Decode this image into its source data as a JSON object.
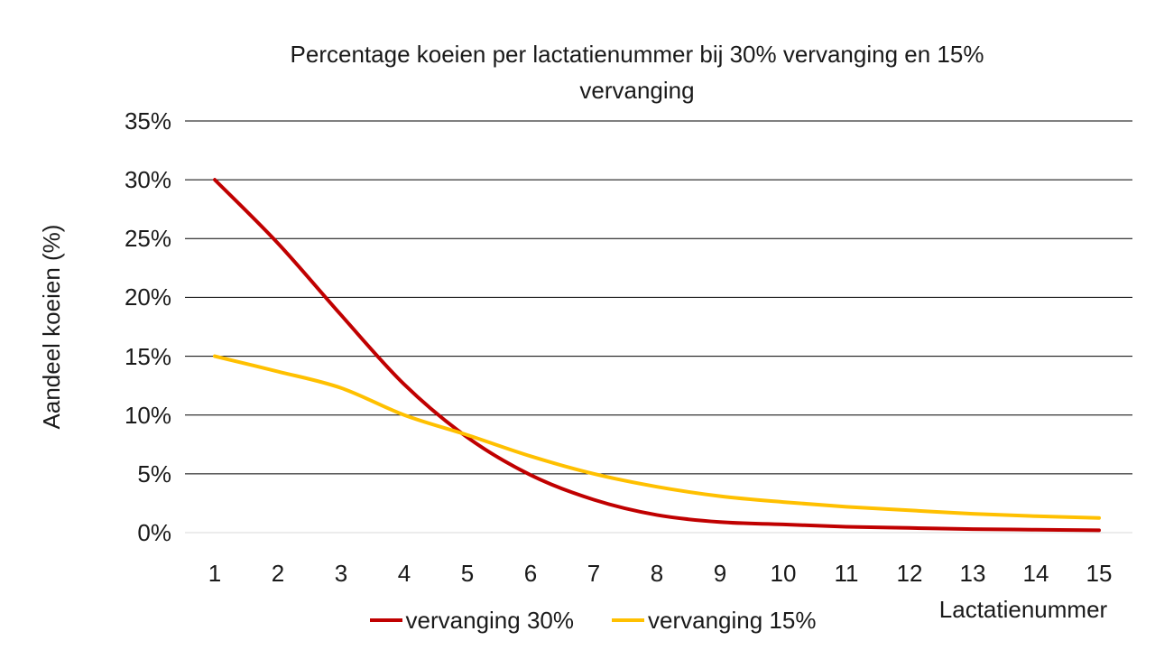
{
  "page": {
    "background": "#FFFFFF",
    "text_color": "#1A1A1A"
  },
  "chart_data": {
    "type": "line",
    "title": "Percentage koeien per lactatienummer bij 30% vervanging en 15% vervanging",
    "title_lines": [
      "Percentage koeien per lactatienummer bij 30% vervanging en 15%",
      "vervanging"
    ],
    "xlabel": "Lactatienummer",
    "ylabel": "Aandeel koeien (%)",
    "x": [
      1,
      2,
      3,
      4,
      5,
      6,
      7,
      8,
      9,
      10,
      11,
      12,
      13,
      14,
      15
    ],
    "x_tick_labels": [
      "1",
      "2",
      "3",
      "4",
      "5",
      "6",
      "7",
      "8",
      "9",
      "10",
      "11",
      "12",
      "13",
      "14",
      "15"
    ],
    "y_ticks": [
      0,
      5,
      10,
      15,
      20,
      25,
      30,
      35
    ],
    "y_tick_labels": [
      "0%",
      "5%",
      "10%",
      "15%",
      "20%",
      "25%",
      "30%",
      "35%"
    ],
    "ylim": [
      0,
      35
    ],
    "grid": true,
    "gridline_color": "#000000",
    "baseline_color": "#D9D9D9",
    "legend_position": "bottom",
    "series": [
      {
        "name": "vervanging 30%",
        "color": "#C00000",
        "values": [
          30.0,
          24.6,
          18.5,
          12.6,
          8.1,
          4.9,
          2.8,
          1.5,
          0.9,
          0.7,
          0.5,
          0.4,
          0.3,
          0.25,
          0.2
        ]
      },
      {
        "name": "vervanging 15%",
        "color": "#FFC000",
        "values": [
          15.0,
          13.7,
          12.3,
          10.0,
          8.3,
          6.5,
          5.0,
          3.9,
          3.1,
          2.6,
          2.2,
          1.9,
          1.6,
          1.4,
          1.25
        ]
      }
    ]
  }
}
